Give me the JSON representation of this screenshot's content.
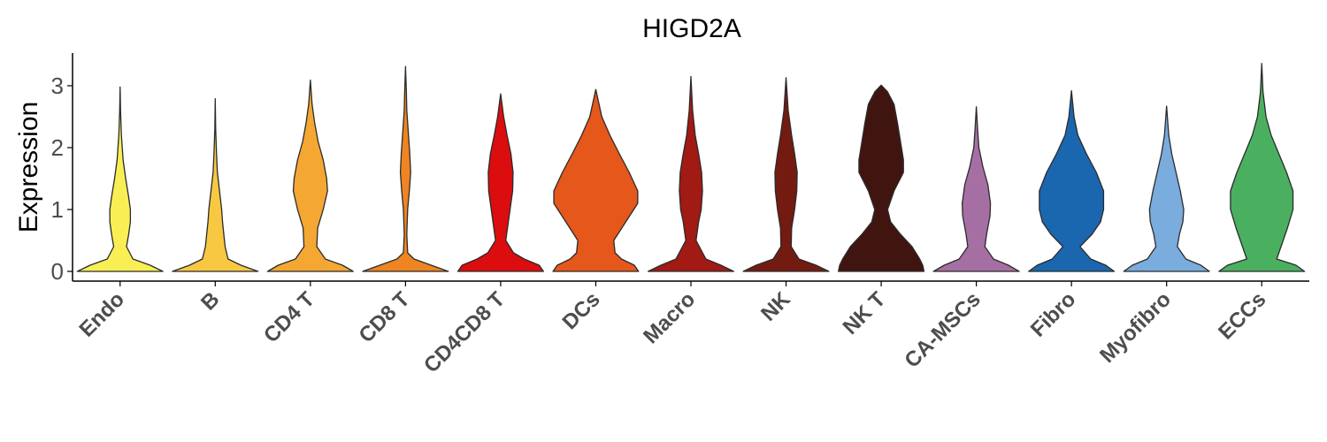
{
  "chart_data": {
    "type": "violin",
    "title": "HIGD2A",
    "xlabel": "",
    "ylabel": "Expression",
    "ylim": [
      -0.15,
      3.55
    ],
    "yticks": [
      0,
      1,
      2,
      3
    ],
    "grid": false,
    "legend": "none",
    "categories": [
      "Endo",
      "B",
      "CD4 T",
      "CD8 T",
      "CD4CD8 T",
      "DCs",
      "Macro",
      "NK",
      "NK T",
      "CA-MSCs",
      "Fibro",
      "Myofibro",
      "ECCs"
    ],
    "series": [
      {
        "category": "Endo",
        "color": "#F9EF55",
        "max": 2.98,
        "density": [
          [
            0,
            1.0
          ],
          [
            0.1,
            0.7
          ],
          [
            0.2,
            0.3
          ],
          [
            0.4,
            0.15
          ],
          [
            0.6,
            0.2
          ],
          [
            0.8,
            0.24
          ],
          [
            1.0,
            0.24
          ],
          [
            1.2,
            0.2
          ],
          [
            1.5,
            0.13
          ],
          [
            1.8,
            0.07
          ],
          [
            2.2,
            0.03
          ],
          [
            2.6,
            0.01
          ],
          [
            2.98,
            0
          ]
        ]
      },
      {
        "category": "B",
        "color": "#F8C843",
        "max": 2.79,
        "density": [
          [
            0,
            1.0
          ],
          [
            0.1,
            0.6
          ],
          [
            0.2,
            0.3
          ],
          [
            0.4,
            0.23
          ],
          [
            0.6,
            0.2
          ],
          [
            0.8,
            0.17
          ],
          [
            1.0,
            0.15
          ],
          [
            1.3,
            0.1
          ],
          [
            1.6,
            0.05
          ],
          [
            1.9,
            0.03
          ],
          [
            2.3,
            0.01
          ],
          [
            2.79,
            0
          ]
        ]
      },
      {
        "category": "CD4 T",
        "color": "#F5A733",
        "max": 3.09,
        "density": [
          [
            0,
            1.0
          ],
          [
            0.1,
            0.75
          ],
          [
            0.2,
            0.35
          ],
          [
            0.4,
            0.15
          ],
          [
            0.7,
            0.17
          ],
          [
            1.0,
            0.3
          ],
          [
            1.3,
            0.4
          ],
          [
            1.5,
            0.38
          ],
          [
            1.8,
            0.3
          ],
          [
            2.1,
            0.18
          ],
          [
            2.4,
            0.1
          ],
          [
            2.7,
            0.04
          ],
          [
            3.09,
            0
          ]
        ]
      },
      {
        "category": "CD8 T",
        "color": "#EE8422",
        "max": 3.31,
        "density": [
          [
            0,
            1.0
          ],
          [
            0.1,
            0.6
          ],
          [
            0.2,
            0.2
          ],
          [
            0.3,
            0.05
          ],
          [
            0.6,
            0.03
          ],
          [
            1.0,
            0.05
          ],
          [
            1.3,
            0.09
          ],
          [
            1.6,
            0.12
          ],
          [
            1.9,
            0.1
          ],
          [
            2.2,
            0.07
          ],
          [
            2.6,
            0.03
          ],
          [
            2.9,
            0.02
          ],
          [
            3.31,
            0
          ]
        ]
      },
      {
        "category": "CD4CD8 T",
        "color": "#DC0D0E",
        "max": 2.87,
        "density": [
          [
            0,
            1.0
          ],
          [
            0.1,
            0.9
          ],
          [
            0.2,
            0.55
          ],
          [
            0.3,
            0.3
          ],
          [
            0.5,
            0.12
          ],
          [
            0.8,
            0.18
          ],
          [
            1.0,
            0.22
          ],
          [
            1.3,
            0.28
          ],
          [
            1.6,
            0.29
          ],
          [
            1.9,
            0.24
          ],
          [
            2.2,
            0.15
          ],
          [
            2.5,
            0.07
          ],
          [
            2.87,
            0
          ]
        ]
      },
      {
        "category": "DCs",
        "color": "#E5571A",
        "max": 2.94,
        "density": [
          [
            0,
            1.0
          ],
          [
            0.1,
            0.9
          ],
          [
            0.2,
            0.6
          ],
          [
            0.3,
            0.45
          ],
          [
            0.5,
            0.42
          ],
          [
            0.8,
            0.7
          ],
          [
            1.1,
            0.98
          ],
          [
            1.3,
            0.98
          ],
          [
            1.6,
            0.78
          ],
          [
            1.9,
            0.55
          ],
          [
            2.2,
            0.33
          ],
          [
            2.5,
            0.14
          ],
          [
            2.94,
            0
          ]
        ]
      },
      {
        "category": "Macro",
        "color": "#A11A13",
        "max": 3.15,
        "density": [
          [
            0,
            1.0
          ],
          [
            0.1,
            0.7
          ],
          [
            0.2,
            0.35
          ],
          [
            0.5,
            0.12
          ],
          [
            0.8,
            0.18
          ],
          [
            1.0,
            0.24
          ],
          [
            1.3,
            0.27
          ],
          [
            1.6,
            0.25
          ],
          [
            1.9,
            0.18
          ],
          [
            2.2,
            0.1
          ],
          [
            2.6,
            0.04
          ],
          [
            3.15,
            0
          ]
        ]
      },
      {
        "category": "NK",
        "color": "#731B11",
        "max": 3.13,
        "density": [
          [
            0,
            1.0
          ],
          [
            0.1,
            0.7
          ],
          [
            0.2,
            0.3
          ],
          [
            0.4,
            0.12
          ],
          [
            0.7,
            0.13
          ],
          [
            1.0,
            0.2
          ],
          [
            1.3,
            0.25
          ],
          [
            1.6,
            0.26
          ],
          [
            1.9,
            0.2
          ],
          [
            2.2,
            0.13
          ],
          [
            2.6,
            0.05
          ],
          [
            3.13,
            0
          ]
        ]
      },
      {
        "category": "NK T",
        "color": "#401510",
        "max": 3.01,
        "density": [
          [
            0,
            1.0
          ],
          [
            0.1,
            0.97
          ],
          [
            0.2,
            0.9
          ],
          [
            0.4,
            0.72
          ],
          [
            0.6,
            0.45
          ],
          [
            0.8,
            0.22
          ],
          [
            1.0,
            0.15
          ],
          [
            1.3,
            0.3
          ],
          [
            1.6,
            0.52
          ],
          [
            1.8,
            0.52
          ],
          [
            2.1,
            0.45
          ],
          [
            2.4,
            0.38
          ],
          [
            2.7,
            0.3
          ],
          [
            2.9,
            0.15
          ],
          [
            3.01,
            0
          ]
        ]
      },
      {
        "category": "CA-MSCs",
        "color": "#A66FA3",
        "max": 2.66,
        "density": [
          [
            0,
            1.0
          ],
          [
            0.1,
            0.75
          ],
          [
            0.2,
            0.4
          ],
          [
            0.4,
            0.2
          ],
          [
            0.6,
            0.24
          ],
          [
            0.9,
            0.32
          ],
          [
            1.1,
            0.33
          ],
          [
            1.4,
            0.27
          ],
          [
            1.7,
            0.15
          ],
          [
            2.0,
            0.06
          ],
          [
            2.3,
            0.03
          ],
          [
            2.66,
            0
          ]
        ]
      },
      {
        "category": "Fibro",
        "color": "#1A67B0",
        "max": 2.92,
        "density": [
          [
            0,
            1.0
          ],
          [
            0.1,
            0.8
          ],
          [
            0.2,
            0.45
          ],
          [
            0.4,
            0.2
          ],
          [
            0.6,
            0.48
          ],
          [
            0.8,
            0.68
          ],
          [
            1.0,
            0.75
          ],
          [
            1.3,
            0.75
          ],
          [
            1.6,
            0.58
          ],
          [
            1.9,
            0.35
          ],
          [
            2.2,
            0.15
          ],
          [
            2.5,
            0.06
          ],
          [
            2.92,
            0
          ]
        ]
      },
      {
        "category": "Myofibro",
        "color": "#7AACDD",
        "max": 2.67,
        "density": [
          [
            0,
            1.0
          ],
          [
            0.1,
            0.8
          ],
          [
            0.2,
            0.45
          ],
          [
            0.4,
            0.25
          ],
          [
            0.6,
            0.3
          ],
          [
            0.8,
            0.38
          ],
          [
            1.0,
            0.4
          ],
          [
            1.3,
            0.32
          ],
          [
            1.6,
            0.22
          ],
          [
            1.9,
            0.12
          ],
          [
            2.2,
            0.05
          ],
          [
            2.67,
            0
          ]
        ]
      },
      {
        "category": "ECCs",
        "color": "#4AB060",
        "max": 3.36,
        "density": [
          [
            0,
            1.0
          ],
          [
            0.1,
            0.8
          ],
          [
            0.2,
            0.35
          ],
          [
            0.4,
            0.45
          ],
          [
            0.7,
            0.6
          ],
          [
            1.0,
            0.73
          ],
          [
            1.3,
            0.73
          ],
          [
            1.6,
            0.58
          ],
          [
            1.9,
            0.4
          ],
          [
            2.2,
            0.22
          ],
          [
            2.5,
            0.1
          ],
          [
            2.9,
            0.03
          ],
          [
            3.36,
            0
          ]
        ]
      }
    ]
  }
}
